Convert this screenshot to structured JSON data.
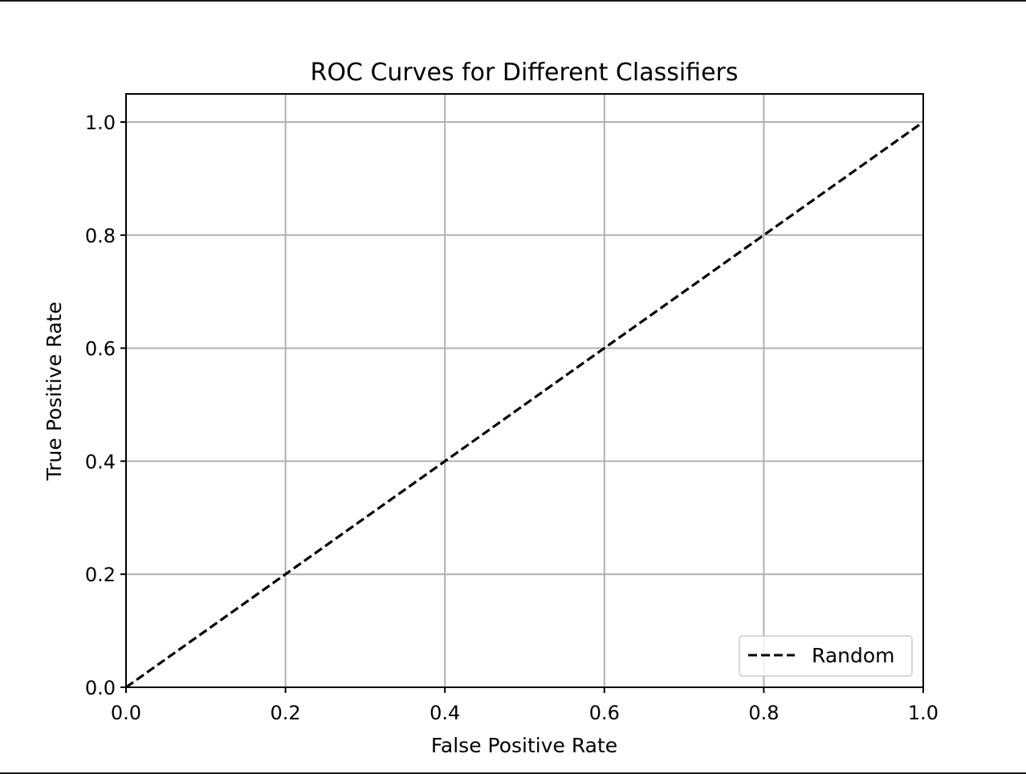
{
  "chart_data": {
    "type": "line",
    "title": "ROC Curves for Different Classifiers",
    "xlabel": "False Positive Rate",
    "ylabel": "True Positive Rate",
    "xlim": [
      0.0,
      1.0
    ],
    "ylim": [
      0.0,
      1.0
    ],
    "x_ticks": [
      0.0,
      0.2,
      0.4,
      0.6,
      0.8,
      1.0
    ],
    "y_ticks": [
      0.0,
      0.2,
      0.4,
      0.6,
      0.8,
      1.0
    ],
    "x_tick_labels": [
      "0.0",
      "0.2",
      "0.4",
      "0.6",
      "0.8",
      "1.0"
    ],
    "y_tick_labels": [
      "0.0",
      "0.2",
      "0.4",
      "0.6",
      "0.8",
      "1.0"
    ],
    "grid": true,
    "legend_position": "lower-right",
    "series": [
      {
        "name": "Random",
        "style": "dashed",
        "color": "#000000",
        "x": [
          0.0,
          1.0
        ],
        "y": [
          0.0,
          1.0
        ]
      }
    ]
  },
  "colors": {
    "grid": "#b0b0b0",
    "axes": "#000000",
    "legend_border": "#cccccc"
  }
}
